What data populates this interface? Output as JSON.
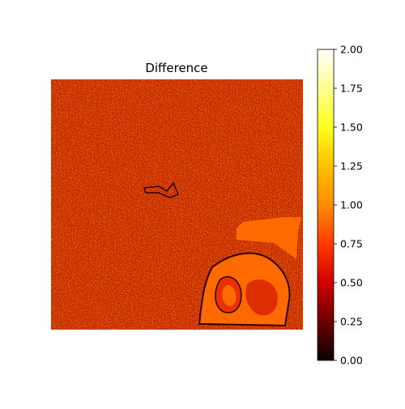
{
  "chart_data": {
    "type": "heatmap",
    "title": "Difference",
    "axes_visible": false,
    "colormap": "hot",
    "colorbar": {
      "min": 0.0,
      "max": 2.0,
      "ticks": [
        0.0,
        0.25,
        0.5,
        0.75,
        1.0,
        1.25,
        1.5,
        1.75,
        2.0
      ],
      "tick_labels": [
        "0.00",
        "0.25",
        "0.50",
        "0.75",
        "1.00",
        "1.25",
        "1.50",
        "1.75",
        "2.00"
      ],
      "placement": "right"
    },
    "description_values": {
      "background_level": 1.0,
      "region_level": 1.0
    }
  }
}
